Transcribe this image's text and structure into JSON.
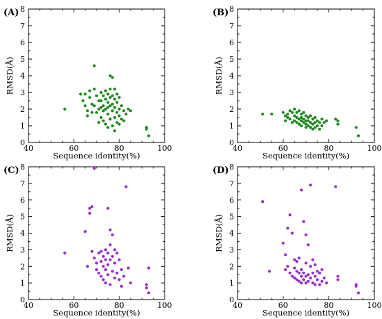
{
  "figure": {
    "background": "#ffffff"
  },
  "chart_data": [
    {
      "type": "scatter",
      "panel_label": "(A)",
      "xlabel": "Sequence identity(%)",
      "ylabel": "RMSD(Å)",
      "xlim": [
        40,
        100
      ],
      "ylim": [
        0,
        8
      ],
      "xticks": [
        "40",
        "60",
        "80",
        "100"
      ],
      "yticks": [
        "0",
        "1",
        "2",
        "3",
        "4",
        "5",
        "6",
        "7",
        "8"
      ],
      "color": "#228b22",
      "series": [
        {
          "x": [
            56,
            63,
            64,
            65,
            65,
            66,
            66,
            67,
            67,
            68,
            68,
            69,
            69,
            69,
            70,
            70,
            71,
            71,
            71,
            72,
            72,
            72,
            72,
            73,
            73,
            73,
            73,
            74,
            74,
            74,
            74,
            75,
            75,
            75,
            75,
            75,
            76,
            76,
            76,
            76,
            76,
            77,
            77,
            77,
            77,
            77,
            78,
            78,
            78,
            78,
            78,
            79,
            79,
            79,
            79,
            80,
            80,
            80,
            80,
            81,
            81,
            82,
            82,
            83,
            84,
            85,
            92,
            92,
            93
          ],
          "y": [
            2.0,
            2.9,
            2.5,
            2.2,
            2.9,
            1.9,
            1.6,
            2.7,
            3.1,
            2.3,
            1.8,
            4.6,
            3.2,
            2.2,
            2.8,
            1.8,
            2.5,
            2.0,
            1.2,
            3.0,
            2.5,
            2.1,
            1.5,
            2.8,
            2.2,
            1.9,
            1.3,
            3.1,
            2.6,
            2.0,
            1.1,
            2.9,
            2.4,
            2.1,
            1.7,
            0.9,
            4.0,
            3.2,
            2.7,
            2.2,
            1.4,
            3.9,
            2.8,
            2.3,
            1.9,
            1.0,
            3.2,
            2.6,
            2.1,
            1.5,
            0.7,
            2.9,
            2.4,
            1.8,
            1.2,
            2.7,
            2.0,
            1.6,
            1.1,
            2.2,
            1.4,
            1.9,
            1.3,
            1.7,
            2.0,
            1.9,
            0.9,
            0.8,
            0.4
          ]
        }
      ]
    },
    {
      "type": "scatter",
      "panel_label": "(B)",
      "xlabel": "Sequence identity(%)",
      "ylabel": "RMSD(Å)",
      "xlim": [
        40,
        100
      ],
      "ylim": [
        0,
        8
      ],
      "xticks": [
        "40",
        "60",
        "80",
        "100"
      ],
      "yticks": [
        "0",
        "1",
        "2",
        "3",
        "4",
        "5",
        "6",
        "7",
        "8"
      ],
      "color": "#228b22",
      "series": [
        {
          "x": [
            51,
            55,
            60,
            61,
            61,
            62,
            62,
            63,
            63,
            64,
            64,
            65,
            65,
            65,
            66,
            66,
            66,
            67,
            67,
            67,
            68,
            68,
            68,
            68,
            69,
            69,
            69,
            70,
            70,
            70,
            70,
            71,
            71,
            71,
            72,
            72,
            72,
            73,
            73,
            73,
            74,
            74,
            74,
            75,
            75,
            76,
            76,
            77,
            77,
            78,
            79,
            83,
            84,
            84,
            92,
            93
          ],
          "y": [
            1.7,
            1.7,
            1.8,
            1.6,
            1.3,
            1.7,
            1.5,
            1.9,
            1.4,
            1.8,
            1.2,
            2.0,
            1.6,
            1.3,
            1.8,
            1.5,
            1.2,
            1.9,
            1.4,
            1.1,
            1.7,
            1.5,
            1.3,
            1.0,
            1.8,
            1.4,
            1.2,
            1.6,
            1.3,
            1.1,
            0.9,
            1.5,
            1.3,
            1.0,
            1.6,
            1.2,
            0.9,
            1.4,
            1.1,
            0.8,
            1.5,
            1.2,
            0.9,
            1.3,
            1.0,
            1.2,
            0.8,
            1.4,
            1.0,
            1.2,
            1.3,
            1.4,
            1.3,
            1.1,
            0.9,
            0.4
          ]
        }
      ]
    },
    {
      "type": "scatter",
      "panel_label": "(C)",
      "xlabel": "Sequence identity(%)",
      "ylabel": "RMSD(Å)",
      "xlim": [
        40,
        100
      ],
      "ylim": [
        0,
        8
      ],
      "xticks": [
        "40",
        "60",
        "80",
        "100"
      ],
      "yticks": [
        "0",
        "1",
        "2",
        "3",
        "4",
        "5",
        "6",
        "7",
        "8"
      ],
      "color": "#9932cc",
      "series": [
        {
          "x": [
            56,
            65,
            66,
            67,
            67,
            68,
            68,
            69,
            69,
            70,
            70,
            71,
            71,
            72,
            72,
            72,
            73,
            73,
            73,
            74,
            74,
            74,
            74,
            75,
            75,
            75,
            75,
            76,
            76,
            76,
            76,
            77,
            77,
            77,
            78,
            78,
            78,
            79,
            79,
            80,
            80,
            81,
            81,
            82,
            83,
            84,
            85,
            92,
            92,
            93,
            93
          ],
          "y": [
            2.8,
            4.1,
            2.0,
            5.2,
            5.5,
            5.6,
            2.9,
            7.9,
            2.5,
            2.2,
            1.8,
            2.8,
            1.6,
            2.9,
            2.3,
            1.4,
            2.6,
            2.0,
            1.2,
            3.0,
            2.4,
            1.8,
            1.0,
            5.5,
            2.8,
            2.1,
            1.5,
            4.2,
            3.3,
            2.4,
            0.9,
            3.9,
            2.6,
            1.7,
            3.0,
            2.2,
            1.3,
            2.8,
            1.6,
            2.4,
            1.2,
            1.8,
            0.8,
            1.4,
            6.8,
            1.9,
            1.0,
            0.9,
            0.7,
            0.4,
            1.9
          ]
        }
      ]
    },
    {
      "type": "scatter",
      "panel_label": "(D)",
      "xlabel": "Sequence identity(%)",
      "ylabel": "RMSD(Å)",
      "xlim": [
        40,
        100
      ],
      "ylim": [
        0,
        8
      ],
      "xticks": [
        "40",
        "60",
        "80",
        "100"
      ],
      "yticks": [
        "0",
        "1",
        "2",
        "3",
        "4",
        "5",
        "6",
        "7",
        "8"
      ],
      "color": "#9932cc",
      "series": [
        {
          "x": [
            51,
            54,
            60,
            61,
            61,
            62,
            62,
            63,
            63,
            64,
            64,
            65,
            65,
            65,
            66,
            66,
            66,
            67,
            67,
            67,
            68,
            68,
            68,
            68,
            69,
            69,
            69,
            70,
            70,
            70,
            70,
            71,
            71,
            71,
            72,
            72,
            72,
            73,
            73,
            73,
            74,
            74,
            74,
            75,
            75,
            76,
            76,
            77,
            77,
            78,
            79,
            83,
            84,
            84,
            92,
            92,
            93
          ],
          "y": [
            5.9,
            1.7,
            3.4,
            2.7,
            1.8,
            4.3,
            2.0,
            1.6,
            5.1,
            4.0,
            1.4,
            2.4,
            1.9,
            1.3,
            2.3,
            1.7,
            1.2,
            2.5,
            1.6,
            1.1,
            6.6,
            1.8,
            1.4,
            1.0,
            4.7,
            1.6,
            1.2,
            3.9,
            2.2,
            1.4,
            1.0,
            3.3,
            1.5,
            1.1,
            6.9,
            2.0,
            1.3,
            2.4,
            1.6,
            1.0,
            2.1,
            1.4,
            0.9,
            1.7,
            1.2,
            1.6,
            0.9,
            1.8,
            1.1,
            1.3,
            1.0,
            6.8,
            1.4,
            1.2,
            0.9,
            0.8,
            0.4
          ]
        }
      ]
    }
  ]
}
